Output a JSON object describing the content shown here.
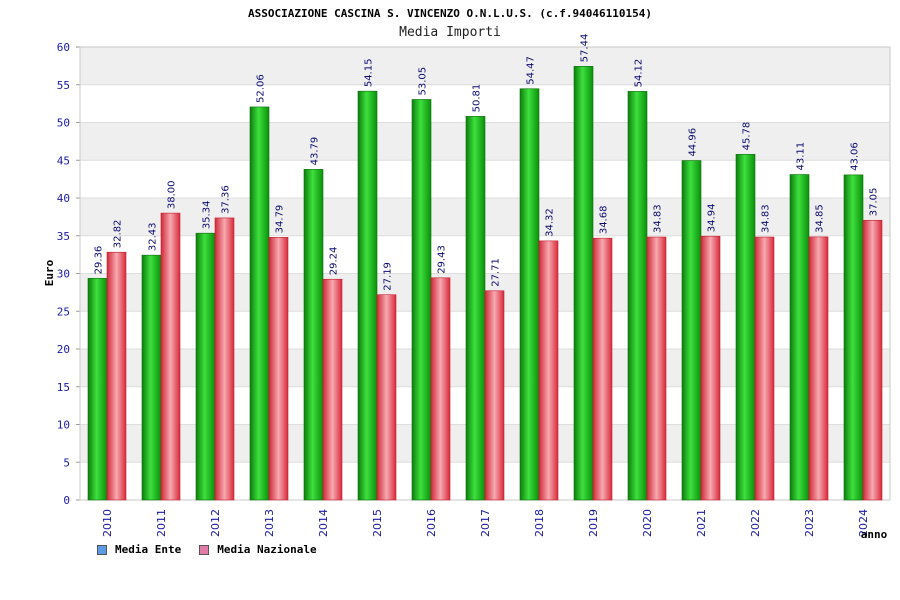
{
  "chart_data": {
    "type": "bar",
    "title": "ASSOCIAZIONE CASCINA S. VINCENZO O.N.L.U.S. (c.f.94046110154)",
    "subtitle": "Media Importi",
    "xlabel": "anno",
    "ylabel": "Euro",
    "ylim": [
      0,
      60
    ],
    "yticks": [
      "0",
      "5",
      "10",
      "15",
      "20",
      "25",
      "30",
      "35",
      "40",
      "45",
      "50",
      "55",
      "60"
    ],
    "categories": [
      "2010",
      "2011",
      "2012",
      "2013",
      "2014",
      "2015",
      "2016",
      "2017",
      "2018",
      "2019",
      "2020",
      "2021",
      "2022",
      "2023",
      "2024"
    ],
    "series": [
      {
        "name": "Media Ente",
        "values": [
          29.36,
          32.43,
          35.34,
          52.06,
          43.79,
          54.15,
          53.05,
          50.81,
          54.47,
          57.44,
          54.12,
          44.96,
          45.78,
          43.11,
          43.06
        ],
        "labels": [
          "29.36",
          "32.43",
          "35.34",
          "52.06",
          "43.79",
          "54.15",
          "53.05",
          "50.81",
          "54.47",
          "57.44",
          "54.12",
          "44.96",
          "45.78",
          "43.11",
          "43.06"
        ]
      },
      {
        "name": "Media Nazionale",
        "values": [
          32.82,
          38.0,
          37.36,
          34.79,
          29.24,
          27.19,
          29.43,
          27.71,
          34.32,
          34.68,
          34.83,
          34.94,
          34.83,
          34.85,
          37.05
        ],
        "labels": [
          "32.82",
          "38.00",
          "37.36",
          "34.79",
          "29.24",
          "27.19",
          "29.43",
          "27.71",
          "34.32",
          "34.68",
          "34.83",
          "34.94",
          "34.83",
          "34.85",
          "37.05"
        ]
      }
    ],
    "grid": true,
    "legend_position": "bottom-left",
    "colors": {
      "series_fill": [
        "#1fbf1f",
        "#e8424e"
      ],
      "legend_swatch": [
        "#5b9be6",
        "#e47aa8"
      ],
      "band": "#efefef",
      "axis_text": "#1a1aa6",
      "value_label": "#0a0a70"
    }
  }
}
